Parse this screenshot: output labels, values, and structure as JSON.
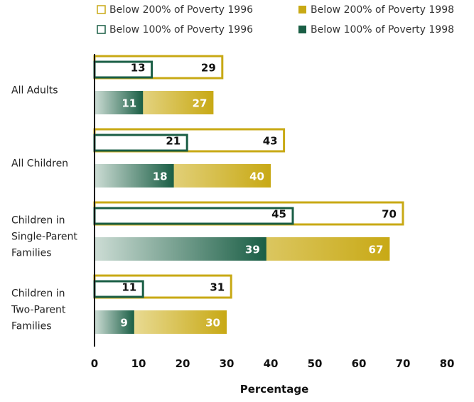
{
  "chart_data": {
    "type": "bar",
    "orientation": "horizontal",
    "xlabel": "Percentage",
    "xlim": [
      0,
      80
    ],
    "xticks": [
      "0",
      "10",
      "20",
      "30",
      "40",
      "50",
      "60",
      "70",
      "80"
    ],
    "legend_position": "top",
    "categories": [
      [
        "All Adults"
      ],
      [
        "All Children"
      ],
      [
        "Children in",
        "Single-Parent",
        "Families"
      ],
      [
        "Children in",
        "Two-Parent",
        "Families"
      ]
    ],
    "series": [
      {
        "name": "Below 200% of Poverty 1996",
        "values": [
          29,
          43,
          70,
          31
        ],
        "color": "#c8a915",
        "style": "outline"
      },
      {
        "name": "Below 100% of Poverty 1996",
        "values": [
          13,
          21,
          45,
          11
        ],
        "color": "#1a5e45",
        "style": "outline"
      },
      {
        "name": "Below 200% of Poverty 1998",
        "values": [
          27,
          40,
          67,
          30
        ],
        "color": "#c8a915",
        "style": "filled"
      },
      {
        "name": "Below 100% of Poverty 1998",
        "values": [
          11,
          18,
          39,
          9
        ],
        "color": "#1a5e45",
        "style": "filled"
      }
    ]
  }
}
